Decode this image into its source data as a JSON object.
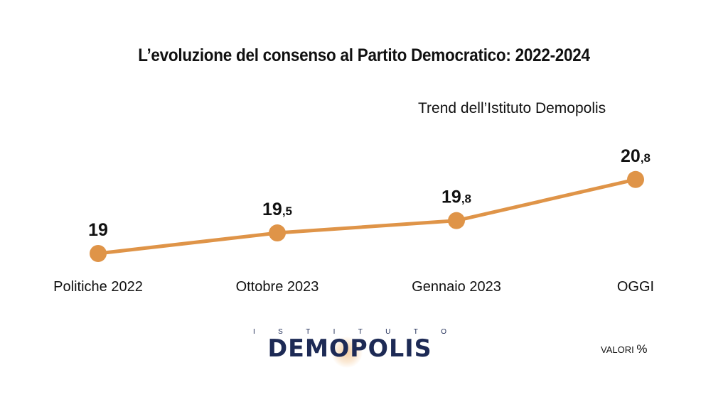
{
  "title": "L’evoluzione del consenso al Partito Democratico: 2022-2024",
  "subtitle": "Trend dell’Istituto Demopolis",
  "footer": {
    "valori_label": "VALORI",
    "percent_sign": "%"
  },
  "logo": {
    "top_letters": [
      "I",
      "S",
      "T",
      "I",
      "T",
      "U",
      "T",
      "O"
    ],
    "main": "DEMOPOLIS"
  },
  "colors": {
    "line": "#df9448",
    "text": "#111111",
    "logo": "#1d2a55"
  },
  "chart_data": {
    "type": "line",
    "categories": [
      "Politiche 2022",
      "Ottobre 2023",
      "Gennaio 2023",
      "OGGI"
    ],
    "values": [
      19,
      19.5,
      19.8,
      20.8
    ],
    "value_labels": [
      {
        "int": "19",
        "dec": ""
      },
      {
        "int": "19",
        "dec": ",5"
      },
      {
        "int": "19",
        "dec": ",8"
      },
      {
        "int": "20",
        "dec": ",8"
      }
    ],
    "title": "L’evoluzione del consenso al Partito Democratico: 2022-2024",
    "subtitle": "Trend dell’Istituto Demopolis",
    "unit": "%",
    "legend": "none",
    "grid": false
  }
}
